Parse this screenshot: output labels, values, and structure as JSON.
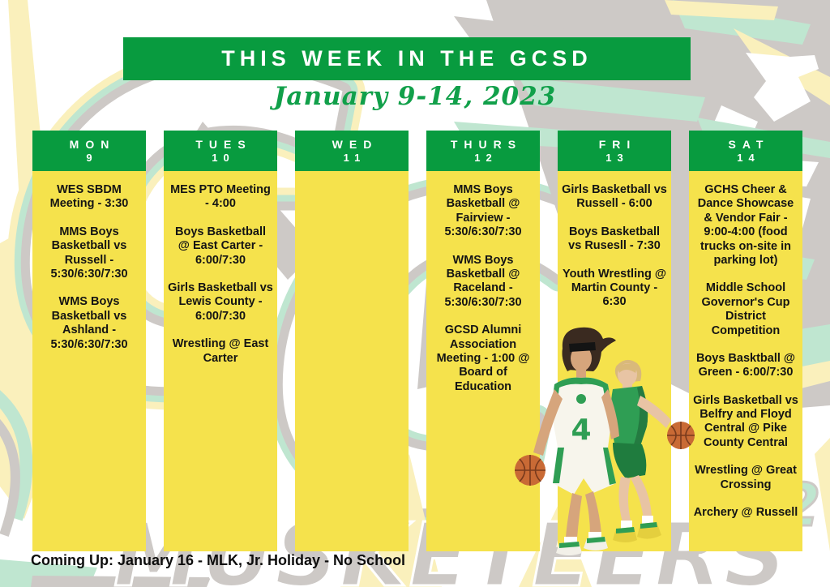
{
  "poster": {
    "title": "THIS WEEK IN THE GCSD",
    "date_range": "January 9-14, 2023",
    "footer": "Coming Up: January 16 - MLK, Jr. Holiday - No School",
    "colors": {
      "header_green": "#089b3f",
      "column_yellow": "#f5e24c",
      "script_green": "#11a04a",
      "text_black": "#141414",
      "watermark_gray": "#cdc9c6",
      "watermark_mint": "#bfe6d0",
      "watermark_pale_yellow": "#faf0bc"
    }
  },
  "days": [
    {
      "label": "MON",
      "number": "9",
      "events": [
        "WES SBDM Meeting - 3:30",
        "MMS Boys Basketball vs Russell - 5:30/6:30/7:30",
        "WMS Boys Basketball vs Ashland - 5:30/6:30/7:30"
      ]
    },
    {
      "label": "TUES",
      "number": "10",
      "events": [
        "MES PTO Meeting - 4:00",
        "Boys Basketball @ East Carter - 6:00/7:30",
        "Girls Basketball vs Lewis County - 6:00/7:30",
        "Wrestling @ East Carter"
      ]
    },
    {
      "label": "WED",
      "number": "11",
      "events": []
    },
    {
      "label": "THURS",
      "number": "12",
      "events": [
        "MMS Boys Basketball @ Fairview - 5:30/6:30/7:30",
        "WMS Boys Basketball @ Raceland - 5:30/6:30/7:30",
        "GCSD Alumni Association Meeting - 1:00 @ Board of Education"
      ]
    },
    {
      "label": "FRI",
      "number": "13",
      "events": [
        "Girls Basketball vs Russell - 6:00",
        "Boys Basketball vs Rusesll - 7:30",
        "Youth Wrestling @ Martin County - 6:30"
      ]
    },
    {
      "label": "SAT",
      "number": "14",
      "events": [
        "GCHS Cheer & Dance Showcase & Vendor Fair - 9:00-4:00 (food trucks on-site in parking lot)",
        "Middle School Governor's Cup District Competition",
        "Boys Basktball @ Green - 6:00/7:30",
        "Girls Basketball vs Belfry and Floyd Central @ Pike County Central",
        "Wrestling @ Great Crossing",
        "Archery @ Russell"
      ]
    }
  ],
  "decor": {
    "watermark_letters": "GC",
    "watermark_text": "MUSKETEERS"
  }
}
